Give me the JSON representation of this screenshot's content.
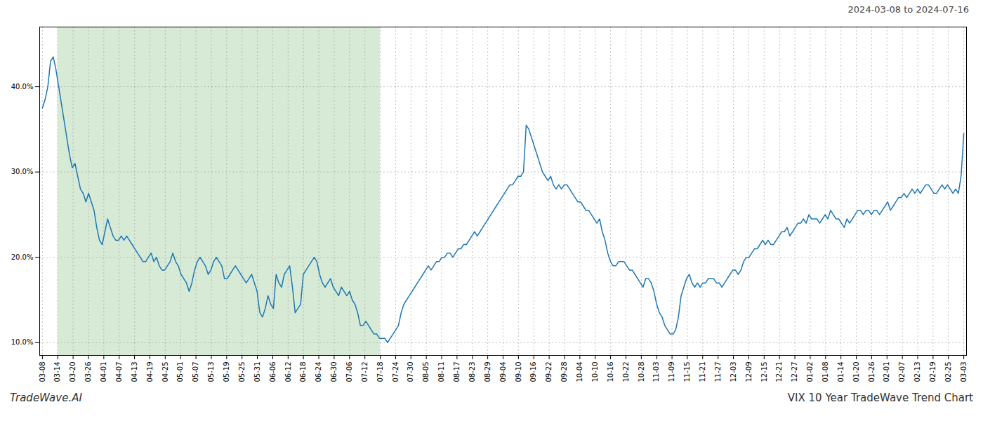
{
  "chart_data": {
    "type": "line",
    "title": "2024-03-08 to 2024-07-16",
    "footer_left": "TradeWave.AI",
    "footer_right": "VIX 10 Year TradeWave Trend Chart",
    "color": "#1f77b4",
    "grid": true,
    "xlim": [
      -1,
      340
    ],
    "xticks": [
      {
        "value": 0,
        "label": "03-08"
      },
      {
        "value": 5.65,
        "label": "03-14"
      },
      {
        "value": 11.3,
        "label": "03-20"
      },
      {
        "value": 16.95,
        "label": "03-26"
      },
      {
        "value": 22.6,
        "label": "04-01"
      },
      {
        "value": 28.25,
        "label": "04-07"
      },
      {
        "value": 33.9,
        "label": "04-13"
      },
      {
        "value": 39.55,
        "label": "04-19"
      },
      {
        "value": 45.2,
        "label": "04-25"
      },
      {
        "value": 50.85,
        "label": "05-01"
      },
      {
        "value": 56.5,
        "label": "05-07"
      },
      {
        "value": 62.15,
        "label": "05-13"
      },
      {
        "value": 67.8,
        "label": "05-19"
      },
      {
        "value": 73.45,
        "label": "05-25"
      },
      {
        "value": 79.1,
        "label": "05-31"
      },
      {
        "value": 84.75,
        "label": "06-06"
      },
      {
        "value": 90.4,
        "label": "06-12"
      },
      {
        "value": 96.05,
        "label": "06-18"
      },
      {
        "value": 101.7,
        "label": "06-24"
      },
      {
        "value": 107.35,
        "label": "06-30"
      },
      {
        "value": 113,
        "label": "07-06"
      },
      {
        "value": 118.65,
        "label": "07-12"
      },
      {
        "value": 124.3,
        "label": "07-18"
      },
      {
        "value": 129.95,
        "label": "07-24"
      },
      {
        "value": 135.6,
        "label": "07-30"
      },
      {
        "value": 141.25,
        "label": "08-05"
      },
      {
        "value": 146.9,
        "label": "08-11"
      },
      {
        "value": 152.55,
        "label": "08-17"
      },
      {
        "value": 158.2,
        "label": "08-23"
      },
      {
        "value": 163.85,
        "label": "08-29"
      },
      {
        "value": 169.5,
        "label": "09-04"
      },
      {
        "value": 175.15,
        "label": "09-10"
      },
      {
        "value": 180.8,
        "label": "09-16"
      },
      {
        "value": 186.45,
        "label": "09-22"
      },
      {
        "value": 192.1,
        "label": "09-28"
      },
      {
        "value": 197.75,
        "label": "10-04"
      },
      {
        "value": 203.4,
        "label": "10-10"
      },
      {
        "value": 209.05,
        "label": "10-16"
      },
      {
        "value": 214.7,
        "label": "10-22"
      },
      {
        "value": 220.35,
        "label": "10-28"
      },
      {
        "value": 226,
        "label": "11-03"
      },
      {
        "value": 231.65,
        "label": "11-09"
      },
      {
        "value": 237.3,
        "label": "11-15"
      },
      {
        "value": 242.95,
        "label": "11-21"
      },
      {
        "value": 248.6,
        "label": "11-27"
      },
      {
        "value": 254.25,
        "label": "12-03"
      },
      {
        "value": 259.9,
        "label": "12-09"
      },
      {
        "value": 265.55,
        "label": "12-15"
      },
      {
        "value": 271.2,
        "label": "12-21"
      },
      {
        "value": 276.85,
        "label": "12-27"
      },
      {
        "value": 282.5,
        "label": "01-02"
      },
      {
        "value": 288.15,
        "label": "01-08"
      },
      {
        "value": 293.8,
        "label": "01-14"
      },
      {
        "value": 299.45,
        "label": "01-20"
      },
      {
        "value": 305.1,
        "label": "01-26"
      },
      {
        "value": 310.75,
        "label": "02-01"
      },
      {
        "value": 316.4,
        "label": "02-07"
      },
      {
        "value": 322.05,
        "label": "02-13"
      },
      {
        "value": 327.7,
        "label": "02-19"
      },
      {
        "value": 333.35,
        "label": "02-25"
      },
      {
        "value": 339,
        "label": "03-03"
      }
    ],
    "ylim": [
      8.5,
      47.0
    ],
    "yticks": [
      {
        "value": 10.0,
        "label": "10.0%"
      },
      {
        "value": 20.0,
        "label": "20.0%"
      },
      {
        "value": 30.0,
        "label": "30.0%"
      },
      {
        "value": 40.0,
        "label": "40.0%"
      }
    ],
    "highlight": {
      "start": "03-14",
      "end": "07-18",
      "color": "#d6ead6"
    },
    "values": [
      37.5,
      38.5,
      40.0,
      43.0,
      43.5,
      42.0,
      40.0,
      38.0,
      36.0,
      34.0,
      32.0,
      30.5,
      31.0,
      29.5,
      28.0,
      27.5,
      26.5,
      27.5,
      26.5,
      25.5,
      23.5,
      22.0,
      21.5,
      23.0,
      24.5,
      23.5,
      22.5,
      22.0,
      22.0,
      22.5,
      22.0,
      22.5,
      22.0,
      21.5,
      21.0,
      20.5,
      20.0,
      19.5,
      19.5,
      20.0,
      20.5,
      19.5,
      20.0,
      19.0,
      18.5,
      18.5,
      19.0,
      19.5,
      20.5,
      19.5,
      19.0,
      18.0,
      17.5,
      17.0,
      16.0,
      17.0,
      18.5,
      19.5,
      20.0,
      19.5,
      19.0,
      18.0,
      18.5,
      19.5,
      20.0,
      19.5,
      19.0,
      17.5,
      17.5,
      18.0,
      18.5,
      19.0,
      18.5,
      18.0,
      17.5,
      17.0,
      17.5,
      18.0,
      17.0,
      16.0,
      13.5,
      13.0,
      14.0,
      15.5,
      14.5,
      14.0,
      18.0,
      17.0,
      16.5,
      18.0,
      18.5,
      19.0,
      16.5,
      13.5,
      14.0,
      14.5,
      18.0,
      18.5,
      19.0,
      19.5,
      20.0,
      19.5,
      18.0,
      17.0,
      16.5,
      17.0,
      17.5,
      16.5,
      16.0,
      15.5,
      16.5,
      16.0,
      15.5,
      16.0,
      15.0,
      14.5,
      13.5,
      12.0,
      12.0,
      12.5,
      12.0,
      11.5,
      11.0,
      11.0,
      10.5,
      10.5,
      10.5,
      10.0,
      10.5,
      11.0,
      11.5,
      12.0,
      13.5,
      14.5,
      15.0,
      15.5,
      16.0,
      16.5,
      17.0,
      17.5,
      18.0,
      18.5,
      19.0,
      18.5,
      19.0,
      19.5,
      19.5,
      20.0,
      20.0,
      20.5,
      20.5,
      20.0,
      20.5,
      21.0,
      21.0,
      21.5,
      21.5,
      22.0,
      22.5,
      23.0,
      22.5,
      23.0,
      23.5,
      24.0,
      24.5,
      25.0,
      25.5,
      26.0,
      26.5,
      27.0,
      27.5,
      28.0,
      28.5,
      28.5,
      29.0,
      29.5,
      29.5,
      30.0,
      35.5,
      35.0,
      34.0,
      33.0,
      32.0,
      31.0,
      30.0,
      29.5,
      29.0,
      29.5,
      28.5,
      28.0,
      28.5,
      28.0,
      28.5,
      28.5,
      28.0,
      27.5,
      27.0,
      26.5,
      26.5,
      26.0,
      25.5,
      25.5,
      25.0,
      24.5,
      24.0,
      24.5,
      23.0,
      22.0,
      20.5,
      19.5,
      19.0,
      19.0,
      19.5,
      19.5,
      19.5,
      19.0,
      18.5,
      18.5,
      18.0,
      17.5,
      17.0,
      16.5,
      17.5,
      17.5,
      17.0,
      16.0,
      14.5,
      13.5,
      13.0,
      12.0,
      11.5,
      11.0,
      11.0,
      11.5,
      13.0,
      15.5,
      16.5,
      17.5,
      18.0,
      17.0,
      16.5,
      17.0,
      16.5,
      17.0,
      17.0,
      17.5,
      17.5,
      17.5,
      17.0,
      17.0,
      16.5,
      17.0,
      17.5,
      18.0,
      18.5,
      18.5,
      18.0,
      18.5,
      19.5,
      20.0,
      20.0,
      20.5,
      21.0,
      21.0,
      21.5,
      22.0,
      21.5,
      22.0,
      21.5,
      21.5,
      22.0,
      22.5,
      23.0,
      23.0,
      23.5,
      22.5,
      23.0,
      23.5,
      24.0,
      24.0,
      24.5,
      24.0,
      25.0,
      24.5,
      24.5,
      24.5,
      24.0,
      24.5,
      25.0,
      24.5,
      25.5,
      25.0,
      24.5,
      24.5,
      24.0,
      23.5,
      24.5,
      24.0,
      24.5,
      25.0,
      25.5,
      25.5,
      25.0,
      25.5,
      25.5,
      25.0,
      25.5,
      25.5,
      25.0,
      25.5,
      26.0,
      26.5,
      25.5,
      26.0,
      26.5,
      27.0,
      27.0,
      27.5,
      27.0,
      27.5,
      28.0,
      27.5,
      28.0,
      27.5,
      28.0,
      28.5,
      28.5,
      28.0,
      27.5,
      27.5,
      28.0,
      28.5,
      28.0,
      28.5,
      28.0,
      27.5,
      28.0,
      27.5,
      29.5,
      34.5
    ]
  }
}
